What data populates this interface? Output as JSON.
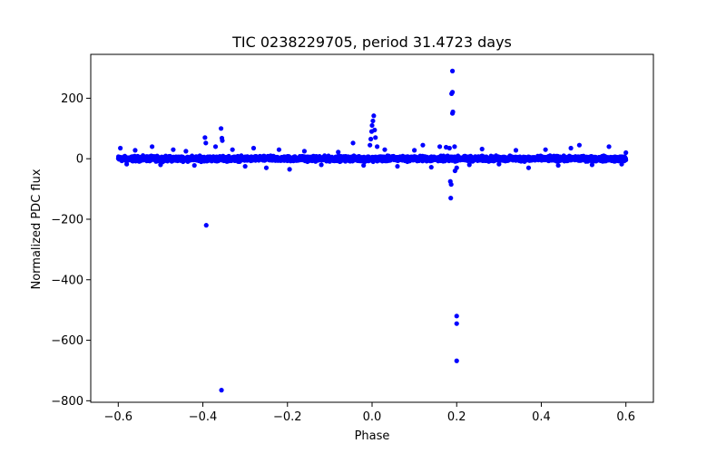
{
  "chart_data": {
    "type": "scatter",
    "title": "TIC 0238229705, period 31.4723 days",
    "xlabel": "Phase",
    "ylabel": "Normalized PDC flux",
    "xlim": [
      -0.665,
      0.665
    ],
    "ylim": [
      -805,
      345
    ],
    "xticks": [
      -0.6,
      -0.4,
      -0.2,
      0.0,
      0.2,
      0.4,
      0.6
    ],
    "xtick_labels": [
      "−0.6",
      "−0.4",
      "−0.2",
      "0.0",
      "0.2",
      "0.4",
      "0.6"
    ],
    "yticks": [
      -800,
      -600,
      -400,
      -200,
      0,
      200
    ],
    "ytick_labels": [
      "−800",
      "−600",
      "−400",
      "−200",
      "0",
      "200"
    ],
    "grid": false,
    "color": "#0000ff",
    "series": [
      {
        "name": "flux",
        "band": {
          "x_range": [
            -0.6,
            0.6
          ],
          "y_center": 0,
          "y_halfwidth": 12,
          "note": "dense band of thousands of points near zero"
        },
        "points": [
          {
            "x": -0.595,
            "y": 35
          },
          {
            "x": -0.58,
            "y": -18
          },
          {
            "x": -0.56,
            "y": 28
          },
          {
            "x": -0.52,
            "y": 40
          },
          {
            "x": -0.5,
            "y": -20
          },
          {
            "x": -0.47,
            "y": 30
          },
          {
            "x": -0.44,
            "y": 25
          },
          {
            "x": -0.42,
            "y": -22
          },
          {
            "x": -0.395,
            "y": 70
          },
          {
            "x": -0.393,
            "y": 52
          },
          {
            "x": -0.392,
            "y": -220
          },
          {
            "x": -0.37,
            "y": 40
          },
          {
            "x": -0.357,
            "y": 100
          },
          {
            "x": -0.355,
            "y": 68
          },
          {
            "x": -0.354,
            "y": 60
          },
          {
            "x": -0.356,
            "y": -765
          },
          {
            "x": -0.33,
            "y": 30
          },
          {
            "x": -0.3,
            "y": -25
          },
          {
            "x": -0.28,
            "y": 35
          },
          {
            "x": -0.25,
            "y": -30
          },
          {
            "x": -0.22,
            "y": 30
          },
          {
            "x": -0.195,
            "y": -35
          },
          {
            "x": -0.16,
            "y": 25
          },
          {
            "x": -0.12,
            "y": -20
          },
          {
            "x": -0.08,
            "y": 22
          },
          {
            "x": -0.045,
            "y": 52
          },
          {
            "x": -0.02,
            "y": -22
          },
          {
            "x": -0.005,
            "y": 45
          },
          {
            "x": -0.003,
            "y": 65
          },
          {
            "x": -0.001,
            "y": 90
          },
          {
            "x": 0.0,
            "y": 110
          },
          {
            "x": 0.002,
            "y": 125
          },
          {
            "x": 0.004,
            "y": 142
          },
          {
            "x": 0.006,
            "y": 95
          },
          {
            "x": 0.008,
            "y": 70
          },
          {
            "x": 0.012,
            "y": 40
          },
          {
            "x": 0.03,
            "y": 30
          },
          {
            "x": 0.06,
            "y": -25
          },
          {
            "x": 0.1,
            "y": 28
          },
          {
            "x": 0.12,
            "y": 45
          },
          {
            "x": 0.14,
            "y": -28
          },
          {
            "x": 0.16,
            "y": 40
          },
          {
            "x": 0.175,
            "y": 38
          },
          {
            "x": 0.183,
            "y": 35
          },
          {
            "x": 0.185,
            "y": -75
          },
          {
            "x": 0.187,
            "y": -85
          },
          {
            "x": 0.186,
            "y": -130
          },
          {
            "x": 0.19,
            "y": 290
          },
          {
            "x": 0.19,
            "y": 220
          },
          {
            "x": 0.188,
            "y": 215
          },
          {
            "x": 0.191,
            "y": 155
          },
          {
            "x": 0.19,
            "y": 150
          },
          {
            "x": 0.195,
            "y": 40
          },
          {
            "x": 0.196,
            "y": -40
          },
          {
            "x": 0.2,
            "y": -30
          },
          {
            "x": 0.2,
            "y": -520
          },
          {
            "x": 0.2,
            "y": -545
          },
          {
            "x": 0.2,
            "y": -668
          },
          {
            "x": 0.23,
            "y": -20
          },
          {
            "x": 0.26,
            "y": 32
          },
          {
            "x": 0.3,
            "y": -18
          },
          {
            "x": 0.34,
            "y": 28
          },
          {
            "x": 0.37,
            "y": -30
          },
          {
            "x": 0.41,
            "y": 30
          },
          {
            "x": 0.44,
            "y": -22
          },
          {
            "x": 0.47,
            "y": 35
          },
          {
            "x": 0.49,
            "y": 45
          },
          {
            "x": 0.52,
            "y": -20
          },
          {
            "x": 0.56,
            "y": 40
          },
          {
            "x": 0.59,
            "y": -18
          },
          {
            "x": 0.6,
            "y": 20
          }
        ]
      }
    ]
  }
}
